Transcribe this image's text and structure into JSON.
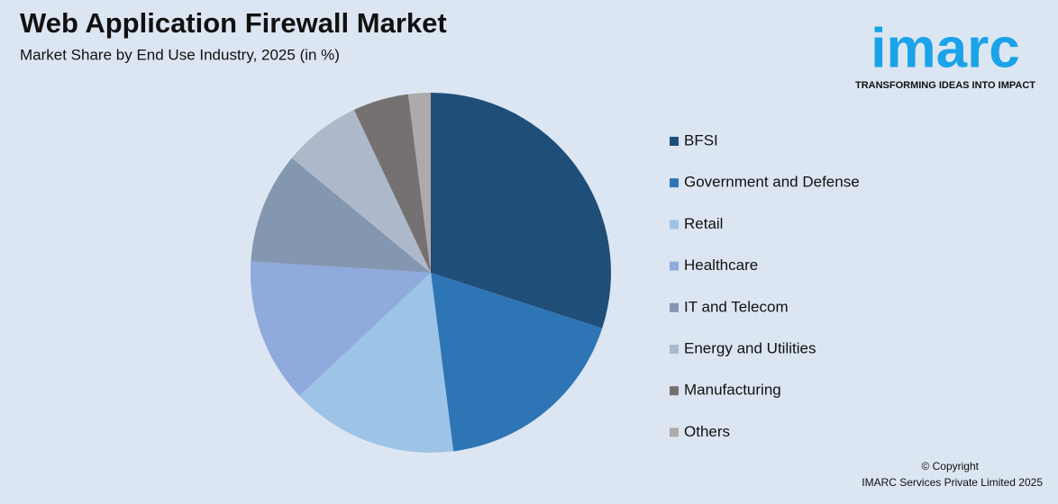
{
  "chart_data": {
    "type": "pie",
    "title": "Web Application Firewall Market",
    "subtitle": "Market Share by End Use Industry, 2025 (in %)",
    "categories": [
      "BFSI",
      "Government and Defense",
      "Retail",
      "Healthcare",
      "IT and Telecom",
      "Energy and Utilities",
      "Manufacturing",
      "Others"
    ],
    "values": [
      30,
      18,
      15,
      13,
      10,
      7,
      5,
      2
    ],
    "colors": [
      "#1f4e79",
      "#2e75b6",
      "#9dc3e6",
      "#8faadc",
      "#8497b0",
      "#adb9ca",
      "#767171",
      "#aeaaaa"
    ],
    "legend": "right"
  },
  "branding": {
    "logo": "imarc",
    "tagline": "TRANSFORMING IDEAS INTO IMPACT",
    "copyright": "© Copyright",
    "company": "IMARC Services Private Limited 2025"
  }
}
